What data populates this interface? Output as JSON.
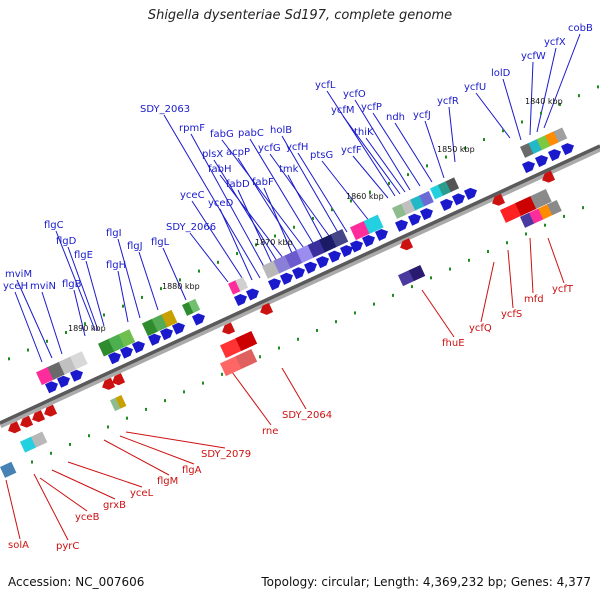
{
  "title": "Shigella dysenteriae Sd197, complete genome",
  "footer": {
    "accession": "Accession: NC_007606",
    "stats": "Topology: circular; Length: 4,369,232 bp; Genes: 4,377"
  },
  "colors": {
    "forward": "#1a1acc",
    "reverse": "#cc1111",
    "backbone": "#777777",
    "tick": "#1e8c1e"
  },
  "kbp_marks": [
    "1840 kbp",
    "1850 kbp",
    "1860 kbp",
    "1870 kbp",
    "1880 kbp",
    "1890 kbp"
  ],
  "forward_genes": [
    "cobB",
    "ycfX",
    "ycfW",
    "lolD",
    "ycfU",
    "ycfR",
    "ycfJ",
    "ndh",
    "ycfP",
    "ycfO",
    "ycfL",
    "ycfM",
    "thiK",
    "ycfF",
    "ptsG",
    "ycfH",
    "holB",
    "ycfG",
    "tmk",
    "pabC",
    "fabG",
    "acpP",
    "fabF",
    "fabH",
    "plsX",
    "fabD",
    "rpmF",
    "SDY_2063",
    "yceD",
    "yceC",
    "SDY_2066",
    "flgL",
    "flgJ",
    "flgI",
    "flgH",
    "flgE",
    "flgC",
    "flgD",
    "flgB",
    "mviM",
    "mviN",
    "yceH"
  ],
  "reverse_genes": [
    "ycfT",
    "mfd",
    "ycfS",
    "ycfQ",
    "fhuE",
    "SDY_2064",
    "rne",
    "SDY_2079",
    "flgA",
    "flgM",
    "yceL",
    "grxB",
    "yceB",
    "pyrC",
    "solA"
  ]
}
